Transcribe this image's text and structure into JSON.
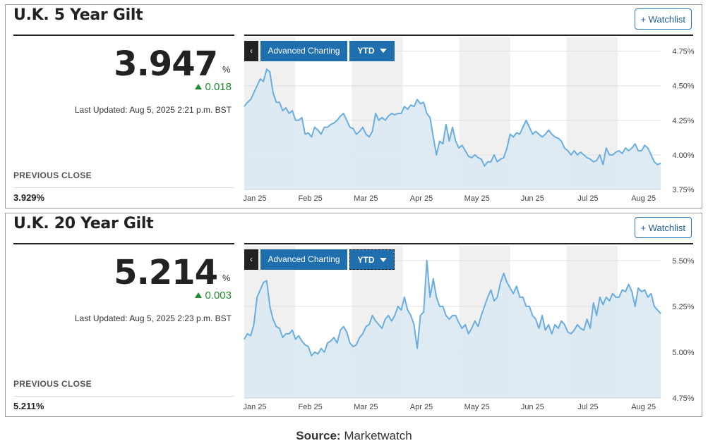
{
  "colors": {
    "line": "#6aaee0",
    "area": "#dce9f2",
    "band": "#f0f0f0",
    "grid": "#e0e0e0",
    "accent": "#1f6fae",
    "positive": "#1f8a2e"
  },
  "panels": [
    {
      "title": "U.K. 5 Year Gilt",
      "watchlist_label": "+ Watchlist",
      "price": "3.947",
      "price_unit": "%",
      "change": "0.018",
      "last_updated": "Last Updated: Aug 5, 2025 2:21 p.m. BST",
      "previous_close_label": "PREVIOUS CLOSE",
      "previous_close": "3.929%",
      "back_label": "‹",
      "advanced_label": "Advanced Charting",
      "range_label": "YTD",
      "range_focused": false
    },
    {
      "title": "U.K. 20 Year Gilt",
      "watchlist_label": "+ Watchlist",
      "price": "5.214",
      "price_unit": "%",
      "change": "0.003",
      "last_updated": "Last Updated: Aug 5, 2025 2:23 p.m. BST",
      "previous_close_label": "PREVIOUS CLOSE",
      "previous_close": "5.211%",
      "back_label": "‹",
      "advanced_label": "Advanced Charting",
      "range_label": "YTD",
      "range_focused": true
    }
  ],
  "chart_data": [
    {
      "type": "area",
      "x_labels": [
        "Jan 25",
        "Feb 25",
        "Mar 25",
        "Apr 25",
        "May 25",
        "Jun 25",
        "Jul 25",
        "Aug 25"
      ],
      "y_ticks": [
        3.75,
        4.0,
        4.25,
        4.5,
        4.75
      ],
      "y_tick_labels": [
        "3.75%",
        "4.00%",
        "4.25%",
        "4.50%",
        "4.75%"
      ],
      "ylim": [
        3.75,
        4.85
      ],
      "grid": true,
      "values": [
        4.35,
        4.38,
        4.4,
        4.45,
        4.5,
        4.55,
        4.53,
        4.62,
        4.6,
        4.45,
        4.38,
        4.38,
        4.32,
        4.34,
        4.3,
        4.32,
        4.25,
        4.25,
        4.27,
        4.15,
        4.16,
        4.13,
        4.2,
        4.18,
        4.15,
        4.2,
        4.2,
        4.22,
        4.23,
        4.25,
        4.28,
        4.3,
        4.25,
        4.2,
        4.19,
        4.15,
        4.17,
        4.2,
        4.15,
        4.13,
        4.17,
        4.3,
        4.25,
        4.27,
        4.25,
        4.28,
        4.3,
        4.29,
        4.3,
        4.3,
        4.35,
        4.33,
        4.36,
        4.35,
        4.4,
        4.37,
        4.38,
        4.3,
        4.27,
        4.13,
        4.0,
        4.1,
        4.08,
        4.22,
        4.1,
        4.2,
        4.1,
        4.05,
        4.07,
        4.03,
        3.99,
        3.98,
        4.0,
        3.98,
        3.97,
        3.92,
        3.95,
        3.95,
        4.0,
        3.95,
        3.97,
        3.98,
        4.05,
        4.15,
        4.13,
        4.16,
        4.15,
        4.2,
        4.25,
        4.2,
        4.15,
        4.17,
        4.15,
        4.13,
        4.15,
        4.18,
        4.15,
        4.13,
        4.12,
        4.1,
        4.05,
        4.03,
        4.0,
        4.03,
        4.0,
        4.02,
        4.0,
        3.98,
        3.97,
        3.95,
        3.96,
        4.0,
        3.93,
        4.05,
        4.0,
        4.0,
        4.02,
        4.03,
        4.01,
        4.05,
        4.03,
        4.05,
        4.08,
        4.03,
        4.03,
        4.07,
        4.05,
        4.0,
        3.95,
        3.93,
        3.94
      ]
    },
    {
      "type": "area",
      "x_labels": [
        "Jan 25",
        "Feb 25",
        "Mar 25",
        "Apr 25",
        "May 25",
        "Jun 25",
        "Jul 25",
        "Aug 25"
      ],
      "y_ticks": [
        4.75,
        5.0,
        5.25,
        5.5
      ],
      "y_tick_labels": [
        "4.75%",
        "5.00%",
        "5.25%",
        "5.50%"
      ],
      "ylim": [
        4.75,
        5.58
      ],
      "grid": true,
      "values": [
        5.07,
        5.1,
        5.09,
        5.15,
        5.3,
        5.34,
        5.38,
        5.39,
        5.25,
        5.18,
        5.14,
        5.13,
        5.08,
        5.1,
        5.1,
        5.12,
        5.07,
        5.09,
        5.06,
        5.04,
        5.03,
        4.98,
        5.0,
        4.99,
        5.02,
        5.0,
        5.05,
        5.06,
        5.08,
        5.05,
        5.12,
        5.14,
        5.11,
        5.05,
        5.03,
        5.04,
        5.08,
        5.1,
        5.14,
        5.15,
        5.2,
        5.17,
        5.15,
        5.13,
        5.18,
        5.2,
        5.17,
        5.2,
        5.25,
        5.23,
        5.3,
        5.23,
        5.2,
        5.15,
        5.02,
        5.2,
        5.22,
        5.5,
        5.3,
        5.4,
        5.3,
        5.25,
        5.25,
        5.2,
        5.18,
        5.2,
        5.2,
        5.16,
        5.13,
        5.15,
        5.1,
        5.13,
        5.17,
        5.14,
        5.2,
        5.25,
        5.3,
        5.34,
        5.28,
        5.3,
        5.38,
        5.43,
        5.38,
        5.35,
        5.32,
        5.36,
        5.3,
        5.3,
        5.25,
        5.25,
        5.2,
        5.18,
        5.13,
        5.2,
        5.12,
        5.15,
        5.1,
        5.15,
        5.13,
        5.17,
        5.15,
        5.11,
        5.1,
        5.12,
        5.15,
        5.13,
        5.12,
        5.18,
        5.13,
        5.27,
        5.2,
        5.3,
        5.26,
        5.3,
        5.28,
        5.32,
        5.3,
        5.3,
        5.34,
        5.33,
        5.37,
        5.33,
        5.25,
        5.35,
        5.33,
        5.34,
        5.3,
        5.32,
        5.25,
        5.23,
        5.21
      ]
    }
  ],
  "source": {
    "label": "Source:",
    "name": " Marketwatch"
  }
}
